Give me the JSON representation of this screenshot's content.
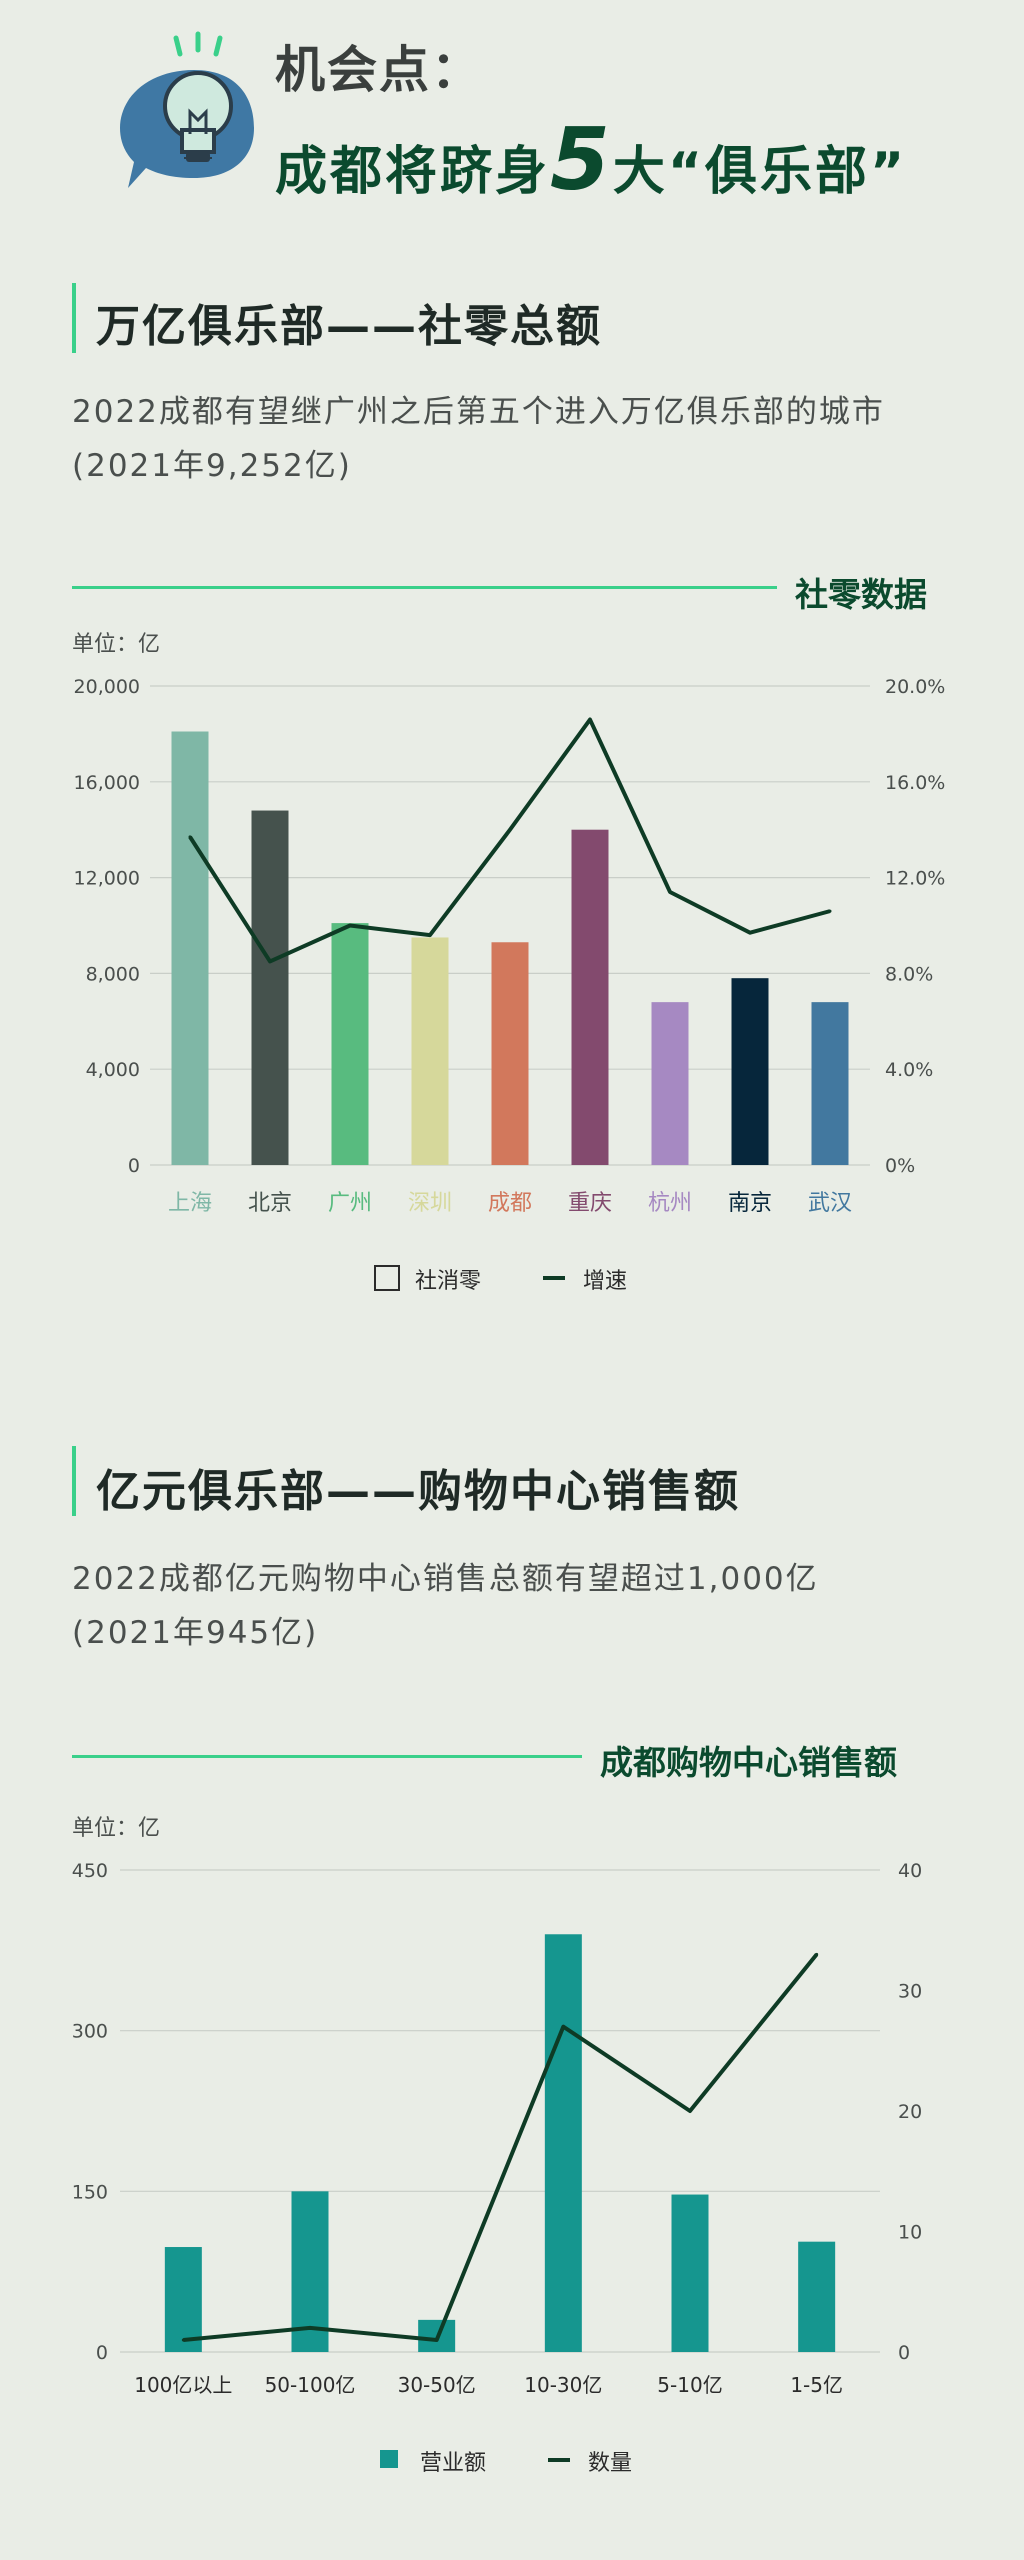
{
  "header": {
    "title": "机会点：",
    "subtitle_pre": "成都将跻身",
    "subtitle_num": "5",
    "subtitle_post": "大“俱乐部”"
  },
  "section1": {
    "title": "万亿俱乐部——社零总额",
    "desc_line1": "2022成都有望继广州之后第五个进入万亿俱乐部的城市",
    "desc_line2": "(2021年9,252亿)",
    "chart_title": "社零数据",
    "unit": "单位：亿"
  },
  "section2": {
    "title": "亿元俱乐部——购物中心销售额",
    "desc_line1": "2022成都亿元购物中心销售总额有望超过1,000亿",
    "desc_line2": "(2021年945亿)",
    "chart_title": "成都购物中心销售额",
    "unit": "单位：亿"
  },
  "chart_data": [
    {
      "type": "bar",
      "categories": [
        "上海",
        "北京",
        "广州",
        "深圳",
        "成都",
        "重庆",
        "杭州",
        "南京",
        "武汉"
      ],
      "category_colors": [
        "#7fb7a6",
        "#45524d",
        "#58bb7f",
        "#d6d89b",
        "#d2785c",
        "#834a6e",
        "#a689c2",
        "#06263b",
        "#42789f"
      ],
      "series": [
        {
          "name": "社消零",
          "type": "bar",
          "values": [
            18100,
            14800,
            10100,
            9500,
            9300,
            14000,
            6800,
            7800,
            6800
          ]
        },
        {
          "name": "增速",
          "type": "line",
          "axis": "right",
          "values": [
            13.7,
            8.5,
            10.0,
            9.6,
            14.0,
            18.6,
            11.4,
            9.7,
            10.6
          ],
          "color": "#0e3b25"
        }
      ],
      "ylim": [
        0,
        20000
      ],
      "yticks": [
        "0",
        "4,000",
        "8,000",
        "12,000",
        "16,000",
        "20,000"
      ],
      "y2lim": [
        0,
        20
      ],
      "y2ticks": [
        "0%",
        "4.0%",
        "8.0%",
        "12.0%",
        "16.0%",
        "20.0%"
      ],
      "legend": [
        "社消零",
        "增速"
      ],
      "legend_position": "bottom",
      "grid": true
    },
    {
      "type": "bar",
      "categories": [
        "100亿以上",
        "50-100亿",
        "30-50亿",
        "10-30亿",
        "5-10亿",
        "1-5亿"
      ],
      "series": [
        {
          "name": "营业额",
          "type": "bar",
          "values": [
            98,
            150,
            30,
            390,
            147,
            103
          ],
          "color": "#15968f"
        },
        {
          "name": "数量",
          "type": "line",
          "axis": "right",
          "values": [
            1,
            2,
            1,
            27,
            20,
            33
          ],
          "color": "#0e3b25"
        }
      ],
      "ylim": [
        0,
        450
      ],
      "yticks": [
        "0",
        "150",
        "300",
        "450"
      ],
      "y2lim": [
        0,
        40
      ],
      "y2ticks": [
        "0",
        "10",
        "20",
        "30",
        "40"
      ],
      "legend": [
        "营业额",
        "数量"
      ],
      "legend_position": "bottom",
      "grid": true
    }
  ]
}
